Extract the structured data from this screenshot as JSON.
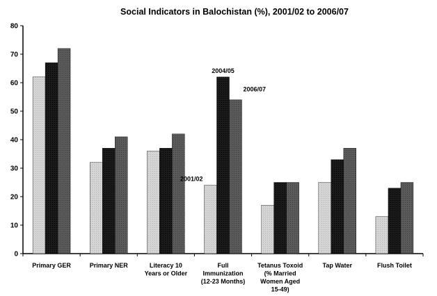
{
  "chart_data": {
    "type": "bar",
    "title": "Social Indicators in Balochistan (%), 2001/02 to 2006/07",
    "categories": [
      [
        "Primary GER"
      ],
      [
        "Primary NER"
      ],
      [
        "Literacy 10",
        "Years or Older"
      ],
      [
        "Full",
        "Immunization",
        "(12-23 Months)"
      ],
      [
        "Tetanus Toxoid",
        "(% Married",
        "Women Aged",
        "15-49)"
      ],
      [
        "Tap Water"
      ],
      [
        "Flush Toilet"
      ]
    ],
    "series": [
      {
        "name": "2001/02",
        "color": "#d4d4d4",
        "values": [
          62,
          32,
          36,
          24,
          17,
          25,
          13
        ]
      },
      {
        "name": "2004/05",
        "color": "#1a1a1a",
        "values": [
          67,
          37,
          37,
          62,
          25,
          33,
          23
        ]
      },
      {
        "name": "2006/07",
        "color": "#5a5a5a",
        "values": [
          72,
          41,
          42,
          54,
          25,
          37,
          25
        ]
      }
    ],
    "ylim": [
      0,
      80
    ],
    "yticks": [
      0,
      10,
      20,
      30,
      40,
      50,
      60,
      70,
      80
    ],
    "annotations": [
      {
        "text": "2001/02",
        "category_index": 3,
        "series_index": 0
      },
      {
        "text": "2004/05",
        "category_index": 3,
        "series_index": 1
      },
      {
        "text": "2006/07",
        "category_index": 3,
        "series_index": 2
      }
    ],
    "grid": false,
    "legend": "none"
  }
}
